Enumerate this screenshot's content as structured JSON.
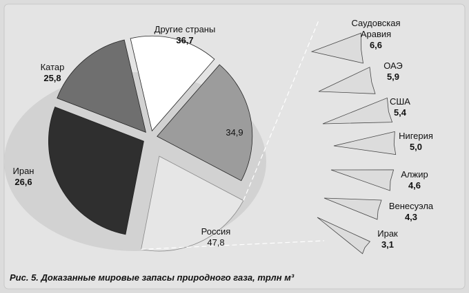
{
  "chart_data": {
    "type": "pie",
    "caption": "Рис. 5. Доказанные мировые запасы природного газа, трлн м³",
    "main_pie": [
      {
        "label": "Россия",
        "value": 47.8,
        "color": "#2f2f2f"
      },
      {
        "label": "Иран",
        "value": 26.6,
        "color": "#6f6f6f"
      },
      {
        "label": "Катар",
        "value": 25.8,
        "color": "#ffffff"
      },
      {
        "label": "Другие страны",
        "value": 36.7,
        "color": "#9c9c9c"
      },
      {
        "label": "",
        "value": 34.9,
        "color": "#e6e6e6",
        "exploded": true
      }
    ],
    "breakout": [
      {
        "label": "Саудовская Аравия",
        "value": 6.6
      },
      {
        "label": "ОАЭ",
        "value": 5.9
      },
      {
        "label": "США",
        "value": 5.4
      },
      {
        "label": "Нигерия",
        "value": 5.0
      },
      {
        "label": "Алжир",
        "value": 4.6
      },
      {
        "label": "Венесуэла",
        "value": 4.3
      },
      {
        "label": "Ирак",
        "value": 3.1
      }
    ],
    "display": {
      "russia_name": "Россия",
      "russia_value": "47,8",
      "iran_name": "Иран",
      "iran_value": "26,6",
      "qatar_name": "Катар",
      "qatar_value": "25,8",
      "other_name": "Другие страны",
      "other_value": "36,7",
      "group_value": "34,9",
      "saudi_name_1": "Саудовская",
      "saudi_name_2": "Аравия",
      "saudi_value": "6,6",
      "uae_name": "ОАЭ",
      "uae_value": "5,9",
      "usa_name": "США",
      "usa_value": "5,4",
      "nigeria_name": "Нигерия",
      "nigeria_value": "5,0",
      "algeria_name": "Алжир",
      "algeria_value": "4,6",
      "venezuela_name": "Венесуэла",
      "venezuela_value": "4,3",
      "iraq_name": "Ирак",
      "iraq_value": "3,1"
    }
  }
}
